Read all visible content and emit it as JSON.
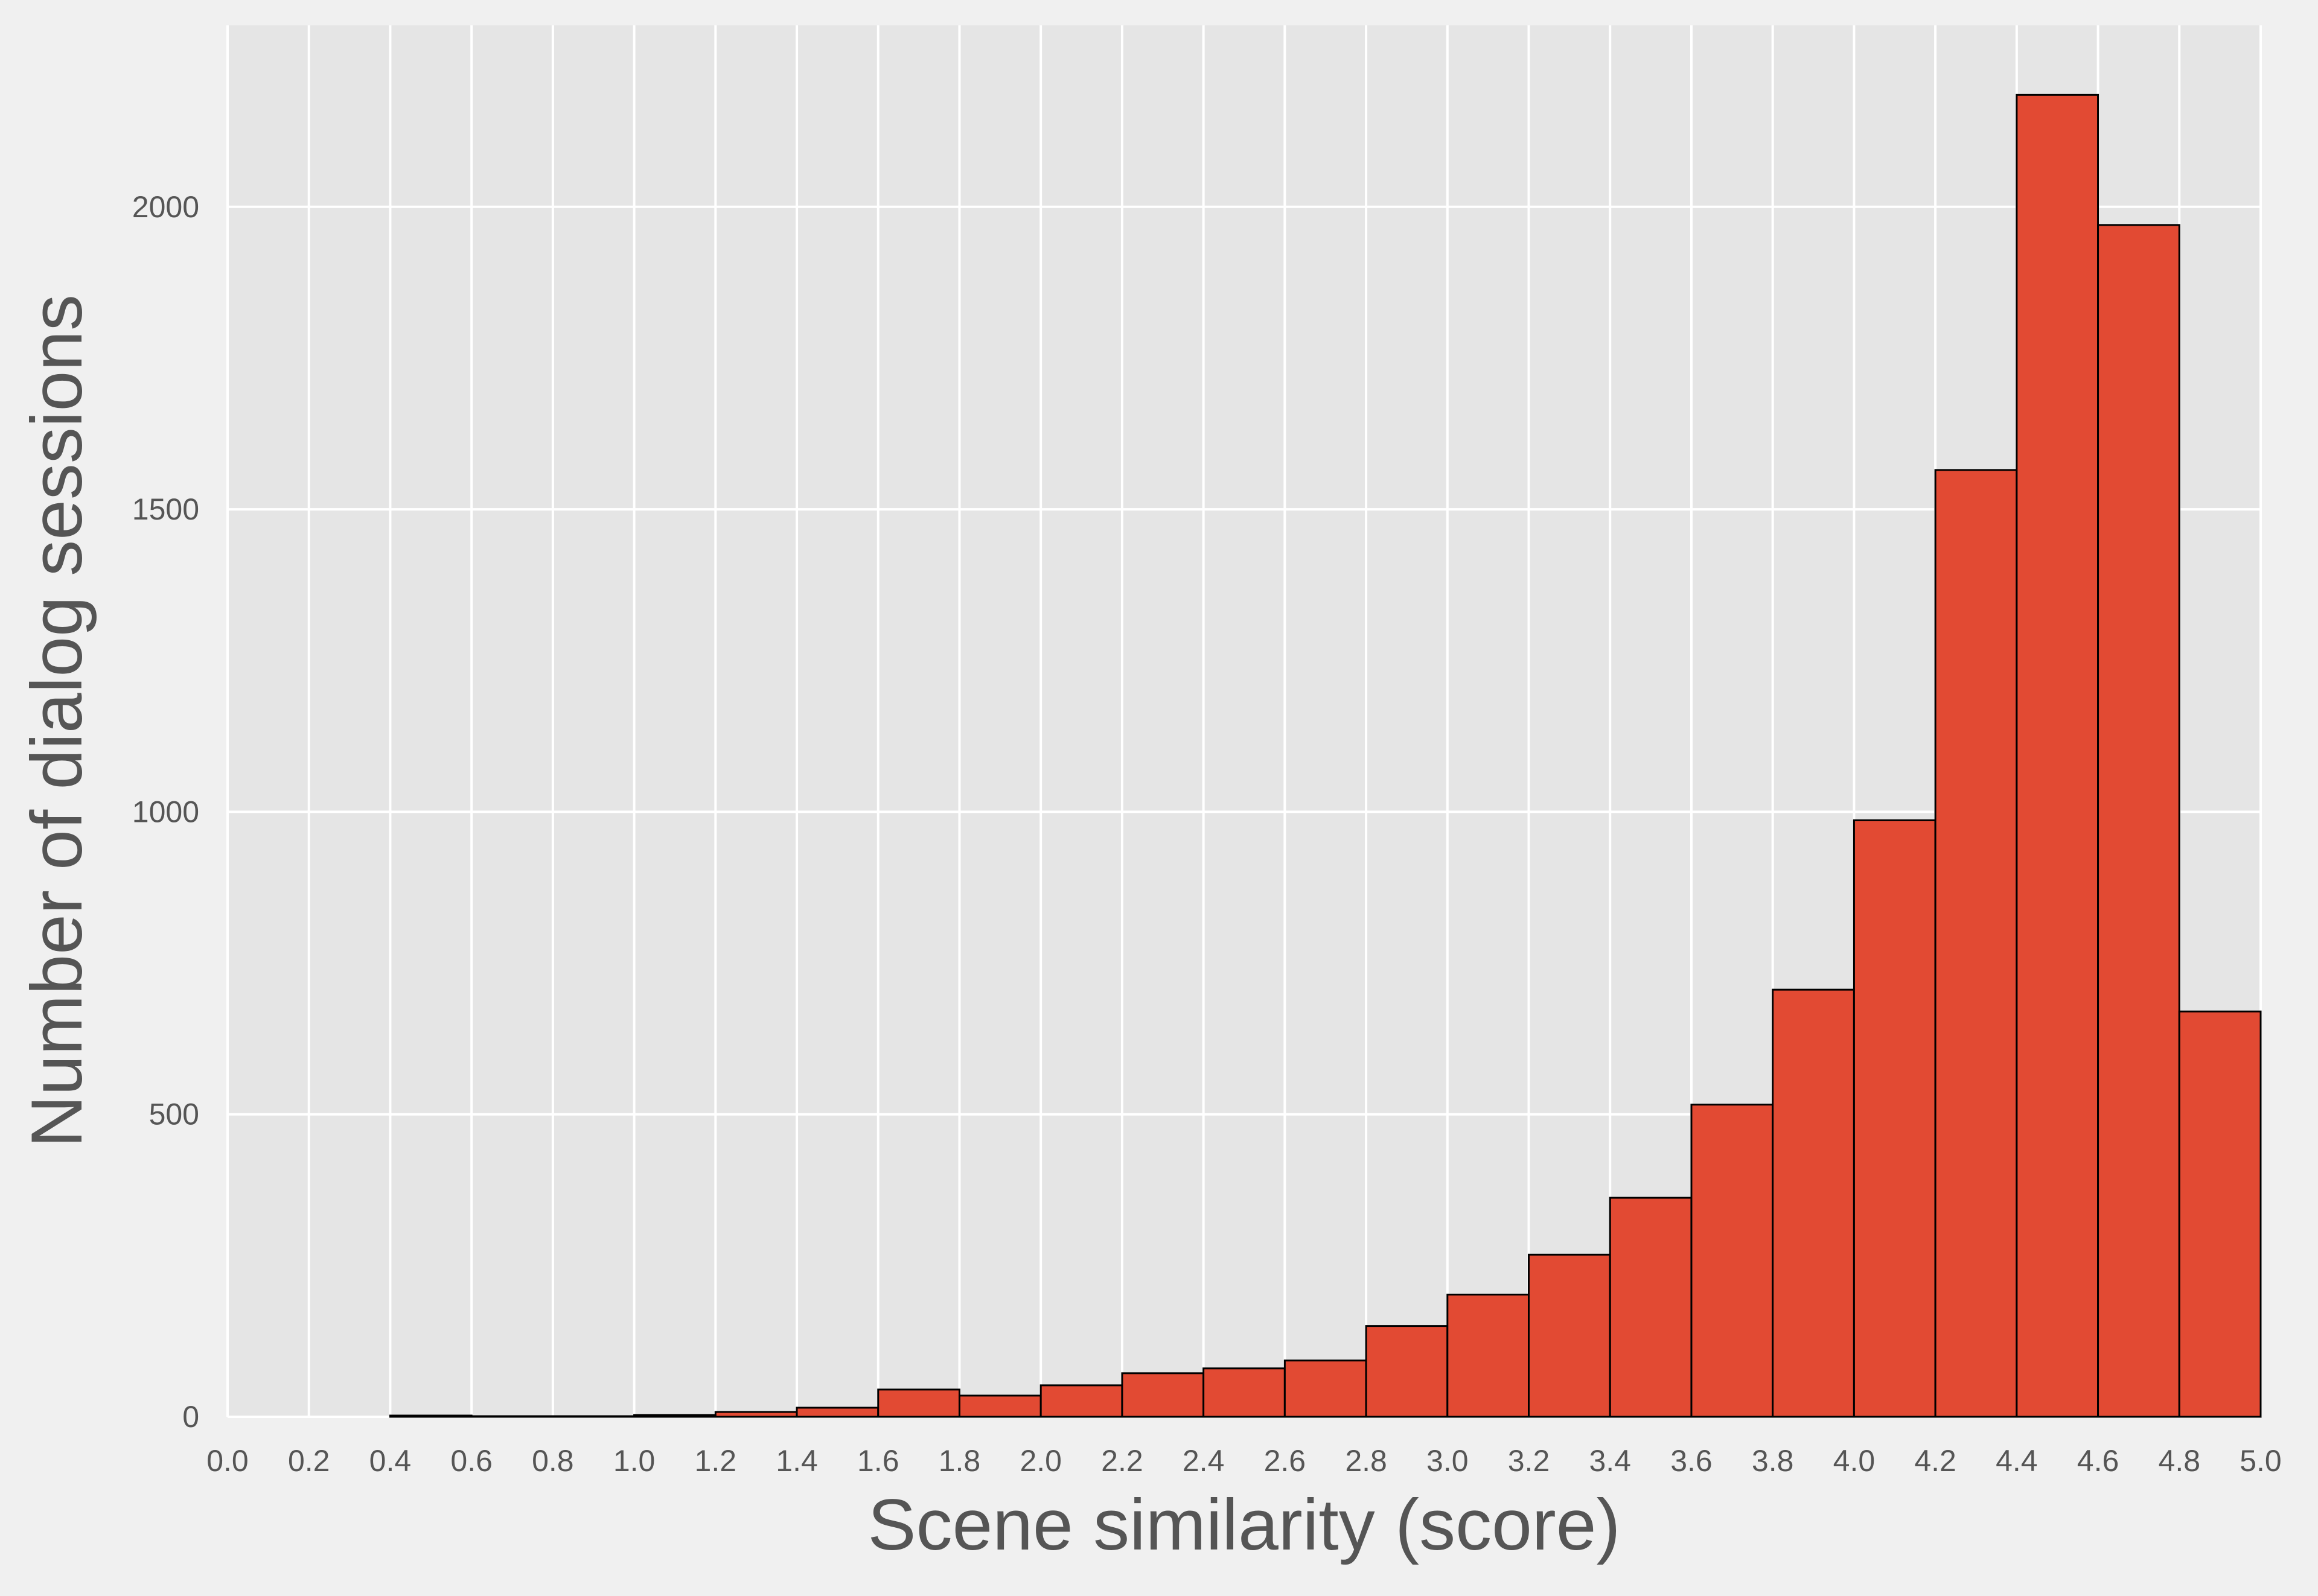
{
  "chart_data": {
    "type": "bar",
    "title": "",
    "xlabel": "Scene similarity (score)",
    "ylabel": "Number of dialog sessions",
    "xlim": [
      0.0,
      5.0
    ],
    "ylim": [
      0,
      2300
    ],
    "grid": true,
    "x_ticks": [
      "0.0",
      "0.2",
      "0.4",
      "0.6",
      "0.8",
      "1.0",
      "1.2",
      "1.4",
      "1.6",
      "1.8",
      "2.0",
      "2.2",
      "2.4",
      "2.6",
      "2.8",
      "3.0",
      "3.2",
      "3.4",
      "3.6",
      "3.8",
      "4.0",
      "4.2",
      "4.4",
      "4.6",
      "4.8",
      "5.0"
    ],
    "y_ticks": [
      "0",
      "500",
      "1000",
      "1500",
      "2000"
    ],
    "bin_edges": [
      0.0,
      0.2,
      0.4,
      0.6,
      0.8,
      1.0,
      1.2,
      1.4,
      1.6,
      1.8,
      2.0,
      2.2,
      2.4,
      2.6,
      2.8,
      3.0,
      3.2,
      3.4,
      3.6,
      3.8,
      4.0,
      4.2,
      4.4,
      4.6,
      4.8,
      5.0
    ],
    "values": [
      0,
      0,
      2,
      1,
      1,
      3,
      8,
      15,
      45,
      35,
      52,
      72,
      80,
      93,
      150,
      202,
      268,
      362,
      516,
      706,
      986,
      1565,
      2185,
      1970,
      670
    ],
    "colors": {
      "bar": "#e24a33",
      "edge": "#000000",
      "plot_bg": "#e5e5e5",
      "grid": "#ffffff",
      "figure_bg": "#f0f0f0",
      "text": "#555555"
    }
  }
}
